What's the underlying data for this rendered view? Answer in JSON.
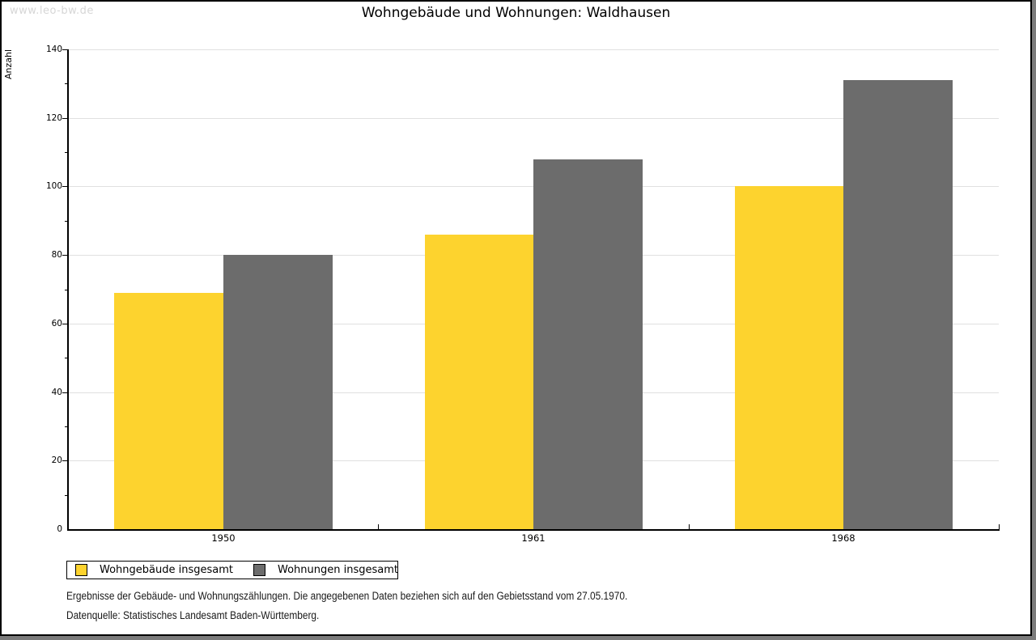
{
  "page": {
    "watermark": "www.leo-bw.de",
    "title": "Wohngebäude und Wohnungen: Waldhausen"
  },
  "chart_data": {
    "type": "bar",
    "title": "Wohngebäude und Wohnungen: Waldhausen",
    "xlabel": "",
    "ylabel": "Anzahl",
    "categories": [
      "1950",
      "1961",
      "1968"
    ],
    "series": [
      {
        "name": "Wohngebäude insgesamt",
        "color": "#fdd32e",
        "values": [
          69,
          86,
          100
        ]
      },
      {
        "name": "Wohnungen insgesamt",
        "color": "#6c6c6c",
        "values": [
          80,
          108,
          131
        ]
      }
    ],
    "ylim": [
      0,
      140
    ],
    "ytick_step": 20,
    "yminor_step": 10,
    "grid": true,
    "gridline_color": "#e0e0e0",
    "legend_position": "bottom-left"
  },
  "legend": {
    "items": [
      {
        "label": "Wohngebäude insgesamt",
        "color": "#fdd32e"
      },
      {
        "label": "Wohnungen insgesamt",
        "color": "#6c6c6c"
      }
    ]
  },
  "footer": {
    "line1": "Ergebnisse der Gebäude- und Wohnungszählungen. Die angegebenen Daten beziehen sich auf den Gebietsstand vom 27.05.1970.",
    "line2": "Datenquelle: Statistisches Landesamt Baden-Württemberg."
  }
}
